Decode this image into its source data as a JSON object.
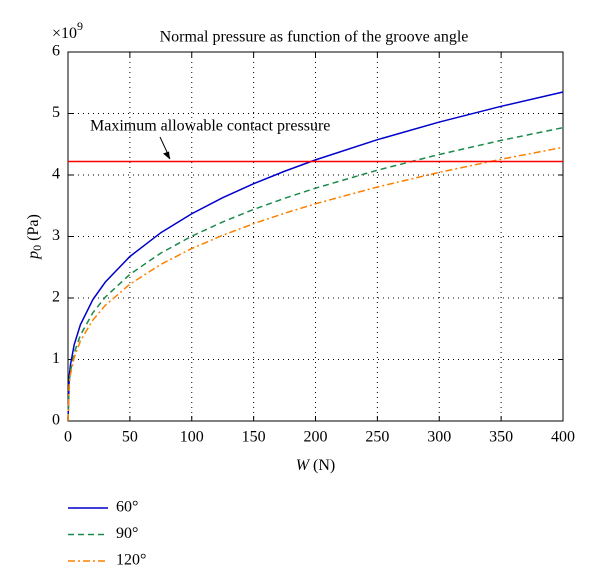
{
  "chart_data": {
    "type": "line",
    "title": "Normal pressure as function of the groove angle",
    "xlabel": {
      "symbol": "W",
      "unit": "(N)"
    },
    "ylabel": {
      "symbol": "p",
      "subscript": "0",
      "unit": "(Pa)"
    },
    "y_scale_label": {
      "base": "×10",
      "exponent": "9"
    },
    "x": [
      0,
      1,
      2,
      5,
      10,
      20,
      30,
      50,
      75,
      100,
      125,
      150,
      175,
      200,
      250,
      300,
      350,
      400
    ],
    "series": [
      {
        "name": "60°",
        "color": "#0000cc",
        "linestyle": "solid",
        "values": [
          0,
          0.726,
          0.915,
          1.242,
          1.564,
          1.971,
          2.256,
          2.675,
          3.062,
          3.37,
          3.631,
          3.858,
          4.061,
          4.246,
          4.574,
          4.861,
          5.117,
          5.35
        ]
      },
      {
        "name": "90°",
        "color": "#1a8a4a",
        "linestyle": "dashed",
        "values": [
          0,
          0.647,
          0.816,
          1.107,
          1.395,
          1.757,
          2.012,
          2.385,
          2.73,
          3.005,
          3.237,
          3.44,
          3.621,
          3.786,
          4.078,
          4.334,
          4.563,
          4.77
        ]
      },
      {
        "name": "120°",
        "color": "#ff8000",
        "linestyle": "dashdot",
        "values": [
          0,
          0.604,
          0.761,
          1.033,
          1.301,
          1.639,
          1.877,
          2.225,
          2.547,
          2.804,
          3.02,
          3.209,
          3.378,
          3.532,
          3.805,
          4.043,
          4.256,
          4.45
        ]
      }
    ],
    "reference_line": {
      "value": 4.22,
      "color": "#ff0000",
      "label": "Maximum allowable contact pressure"
    },
    "xlim": [
      0,
      400
    ],
    "ylim": [
      0,
      6
    ],
    "xticks": [
      0,
      50,
      100,
      150,
      200,
      250,
      300,
      350,
      400
    ],
    "yticks": [
      0,
      1,
      2,
      3,
      4,
      5,
      6
    ],
    "grid": true
  }
}
